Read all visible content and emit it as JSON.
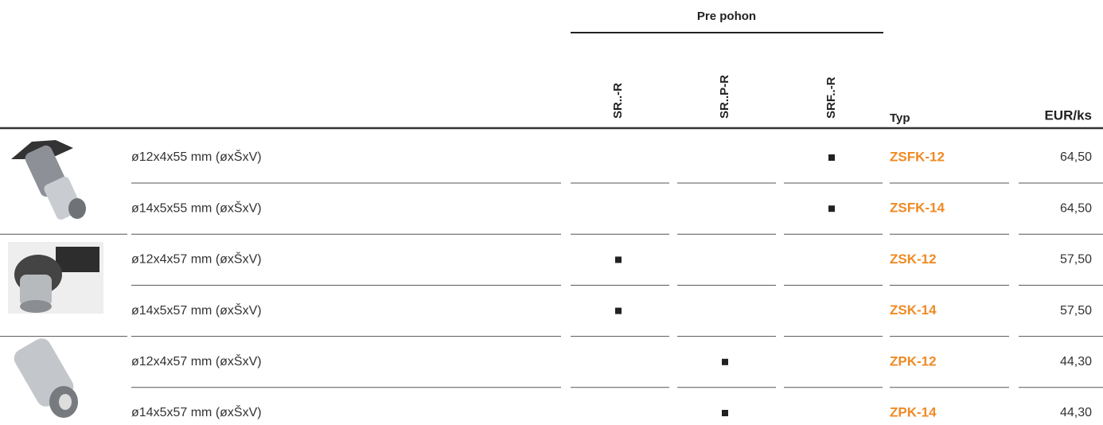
{
  "header": {
    "group": "Pre pohon",
    "columns": [
      "SR..-R",
      "SR..P-R",
      "SRF..-R"
    ],
    "type": "Typ",
    "price": "EUR/ks"
  },
  "table": {
    "rows": [
      {
        "description": "ø12x4x55 mm (øxŠxV)",
        "compat": [
          false,
          false,
          true
        ],
        "type": "ZSFK-12",
        "price": "64,50"
      },
      {
        "description": "ø14x5x55 mm (øxŠxV)",
        "compat": [
          false,
          false,
          true
        ],
        "type": "ZSFK-14",
        "price": "64,50"
      },
      {
        "description": "ø12x4x57 mm (øxŠxV)",
        "compat": [
          true,
          false,
          false
        ],
        "type": "ZSK-12",
        "price": "57,50"
      },
      {
        "description": "ø14x5x57 mm (øxŠxV)",
        "compat": [
          true,
          false,
          false
        ],
        "type": "ZSK-14",
        "price": "57,50"
      },
      {
        "description": "ø12x4x57 mm (øxŠxV)",
        "compat": [
          false,
          true,
          false
        ],
        "type": "ZPK-12",
        "price": "44,30"
      },
      {
        "description": "ø14x5x57 mm (øxŠxV)",
        "compat": [
          false,
          true,
          false
        ],
        "type": "ZPK-14",
        "price": "44,30"
      }
    ]
  }
}
